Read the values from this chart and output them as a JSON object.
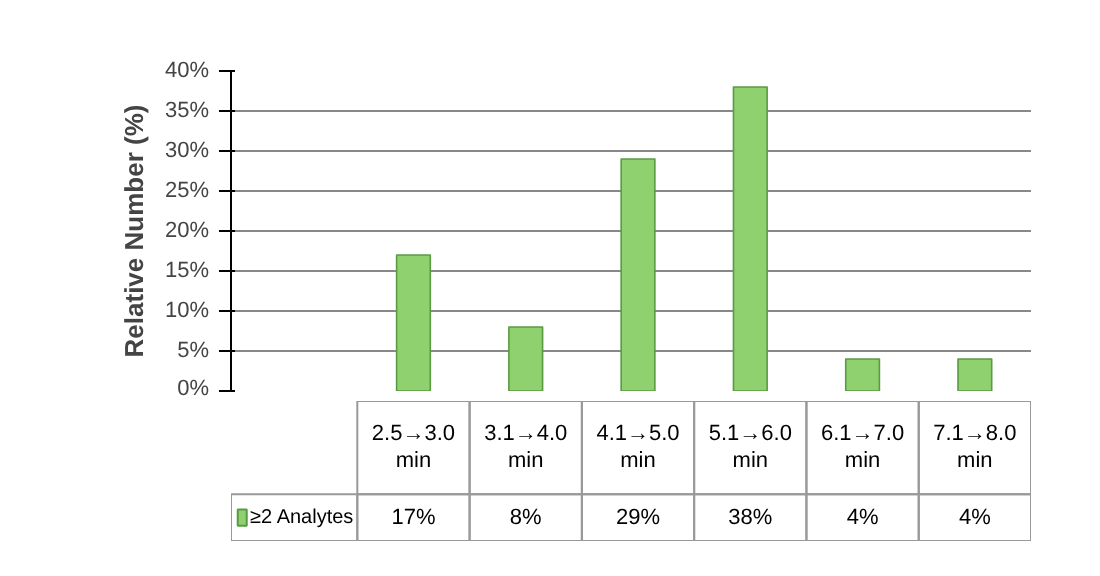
{
  "chart_data": {
    "type": "bar",
    "ylabel": "Relative Number (%)",
    "categories": [
      "2.5→3.0 min",
      "3.1→4.0 min",
      "4.1→5.0 min",
      "5.1→6.0 min",
      "6.1→7.0 min",
      "7.1→8.0 min"
    ],
    "series": [
      {
        "name": "≥2 Analytes",
        "color": "#8fd16f",
        "values": [
          17,
          8,
          29,
          38,
          4,
          4
        ]
      }
    ],
    "ylim": [
      0,
      40
    ],
    "yticks": [
      {
        "value": 0,
        "label": "0%"
      },
      {
        "value": 5,
        "label": "5%"
      },
      {
        "value": 10,
        "label": "10%"
      },
      {
        "value": 15,
        "label": "15%"
      },
      {
        "value": 20,
        "label": "20%"
      },
      {
        "value": 25,
        "label": "25%"
      },
      {
        "value": 30,
        "label": "30%"
      },
      {
        "value": 35,
        "label": "35%"
      },
      {
        "value": 40,
        "label": "40%"
      }
    ],
    "value_labels": [
      "17%",
      "8%",
      "29%",
      "38%",
      "4%",
      "4%"
    ],
    "grid": "y",
    "legend": "bottom"
  }
}
